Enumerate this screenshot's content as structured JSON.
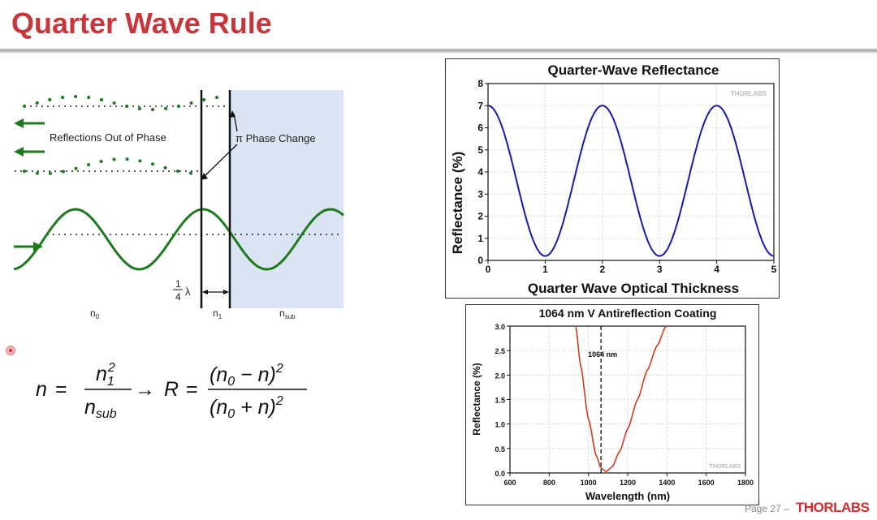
{
  "slide": {
    "title": "Quarter Wave Rule",
    "page_label": "Page 27 –",
    "logo_text": "THORLABS"
  },
  "diagram": {
    "label_reflections": "Reflections Out of Phase",
    "label_phase_change": "π Phase Change",
    "fraction_num": "1",
    "fraction_den": "4",
    "lambda": "λ",
    "n0_main": "n",
    "n0_sub": "0",
    "n1_main": "n",
    "n1_sub": "1",
    "nsub_main": "n",
    "nsub_sub": "sub",
    "colors": {
      "wave": "#1f7a1f",
      "substrate": "#dbe4f3"
    }
  },
  "equation": {
    "n": "n",
    "eq": "=",
    "n1": "n",
    "n1_sub": "1",
    "n1_sup": "2",
    "nsub": "n",
    "nsub_sub": "sub",
    "arrow": "→",
    "R": "R",
    "eq2": "=",
    "num": "(n",
    "num_sub": "0",
    "num_rest": " − n)",
    "num_sup": "2",
    "den": "(n",
    "den_sub": "0",
    "den_rest": " + n)",
    "den_sup": "2"
  },
  "chart_data": [
    {
      "type": "line",
      "title": "Quarter-Wave Reflectance",
      "xlabel": "Quarter Wave Optical Thickness",
      "ylabel": "Reflectance (%)",
      "xlim": [
        0,
        5
      ],
      "ylim": [
        0,
        8
      ],
      "xticks": [
        "0",
        "1",
        "2",
        "3",
        "4",
        "5"
      ],
      "yticks": [
        "0",
        "1",
        "2",
        "3",
        "4",
        "5",
        "6",
        "7",
        "8"
      ],
      "watermark": "THORLABS",
      "grid": true,
      "color": "#1a1aa8",
      "series": [
        {
          "name": "Reflectance",
          "x": [
            0,
            0.5,
            1,
            1.5,
            2,
            2.5,
            3,
            3.5,
            4,
            4.5,
            5
          ],
          "values": [
            7,
            3.6,
            0.2,
            3.6,
            7,
            3.6,
            0.2,
            3.6,
            7,
            3.6,
            0.2
          ]
        }
      ]
    },
    {
      "type": "line",
      "title": "1064 nm V Antireflection Coating",
      "xlabel": "Wavelength (nm)",
      "ylabel": "Reflectance (%)",
      "xlim": [
        600,
        1800
      ],
      "ylim": [
        0,
        3.0
      ],
      "xticks": [
        "600",
        "800",
        "1000",
        "1200",
        "1400",
        "1600",
        "1800"
      ],
      "yticks": [
        "0.0",
        "0.5",
        "1.0",
        "1.5",
        "2.0",
        "2.5",
        "3.0"
      ],
      "annotation": "1064 nm",
      "annotation_x": 1064,
      "watermark": "THORLABS",
      "grid": true,
      "color": "#d23a1e",
      "series": [
        {
          "name": "Reflectance",
          "x": [
            935,
            960,
            1000,
            1040,
            1064,
            1090,
            1120,
            1160,
            1200,
            1250,
            1300,
            1350,
            1395
          ],
          "values": [
            3.0,
            2.2,
            1.1,
            0.35,
            0.1,
            0.03,
            0.12,
            0.45,
            0.9,
            1.5,
            2.1,
            2.6,
            3.0
          ]
        }
      ]
    }
  ]
}
